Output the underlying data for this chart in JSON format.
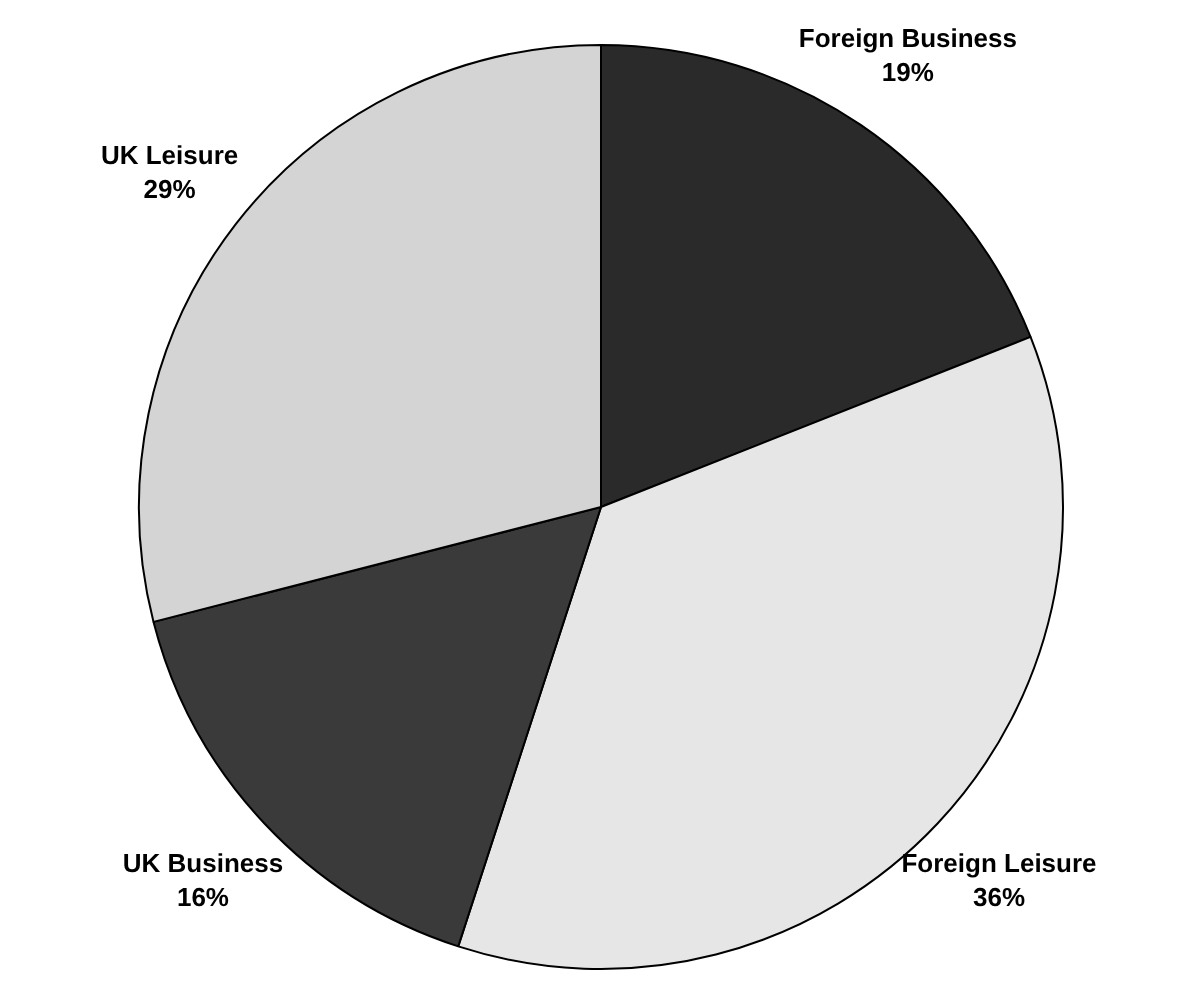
{
  "chart_data": {
    "type": "pie",
    "categories": [
      "Foreign Business",
      "Foreign Leisure",
      "UK Business",
      "UK Leisure"
    ],
    "values": [
      19,
      36,
      16,
      29
    ],
    "colors": [
      "#2a2a2a",
      "#e6e6e6",
      "#3a3a3a",
      "#d4d4d4"
    ],
    "value_labels": [
      "19%",
      "36%",
      "16%",
      "29%"
    ],
    "legend": false
  }
}
